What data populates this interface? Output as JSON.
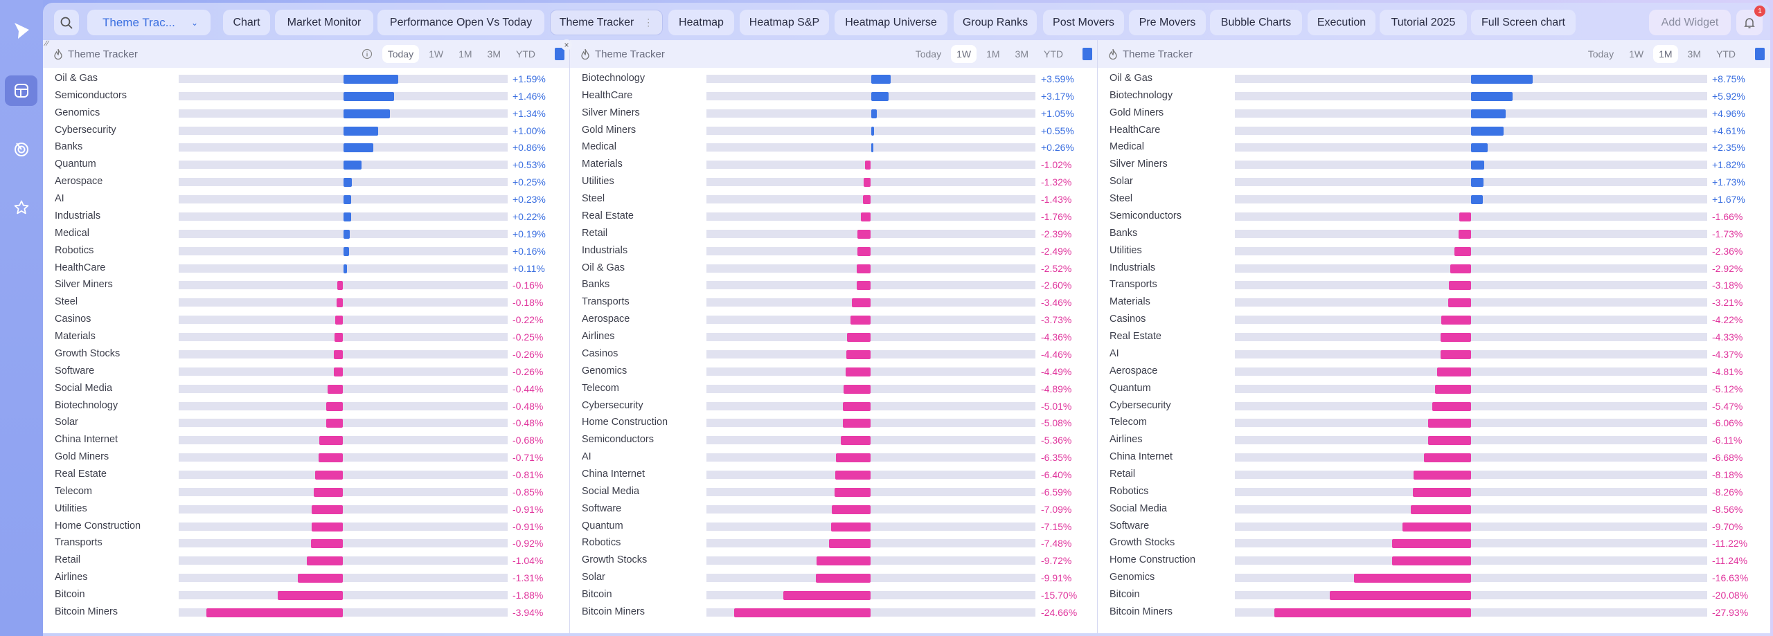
{
  "sidebar": {
    "items": [
      {
        "icon": "logo-icon"
      },
      {
        "icon": "dashboard-icon",
        "active": true
      },
      {
        "icon": "radar-icon"
      },
      {
        "icon": "star-icon"
      }
    ]
  },
  "topbar": {
    "search_icon": "search-icon",
    "dropdown_value": "Theme Trac...",
    "tabs": [
      "Chart",
      "Market Monitor",
      "Performance Open Vs Today",
      "Theme Tracker",
      "Heatmap",
      "Heatmap S&P",
      "Heatmap Universe",
      "Group Ranks",
      "Post Movers",
      "Pre Movers",
      "Bubble Charts",
      "Execution",
      "Tutorial 2025",
      "Full Screen chart"
    ],
    "active_tab": "Theme Tracker",
    "add_widget": "Add Widget",
    "notification_count": "1"
  },
  "colors": {
    "positive": "#3a73e5",
    "negative": "#e83aa8",
    "track": "#e1e2f0",
    "positive_text": "#3b6fe0",
    "negative_text": "#e0359d"
  },
  "panels": [
    {
      "title": "Theme Tracker",
      "periods": [
        "Today",
        "1W",
        "1M",
        "3M",
        "YTD"
      ],
      "active_period": "Today",
      "has_info": true,
      "rows": [
        {
          "label": "Oil & Gas",
          "value": "+1.59%"
        },
        {
          "label": "Semiconductors",
          "value": "+1.46%"
        },
        {
          "label": "Genomics",
          "value": "+1.34%"
        },
        {
          "label": "Cybersecurity",
          "value": "+1.00%"
        },
        {
          "label": "Banks",
          "value": "+0.86%"
        },
        {
          "label": "Quantum",
          "value": "+0.53%"
        },
        {
          "label": "Aerospace",
          "value": "+0.25%"
        },
        {
          "label": "AI",
          "value": "+0.23%"
        },
        {
          "label": "Industrials",
          "value": "+0.22%"
        },
        {
          "label": "Medical",
          "value": "+0.19%"
        },
        {
          "label": "Robotics",
          "value": "+0.16%"
        },
        {
          "label": "HealthCare",
          "value": "+0.11%"
        },
        {
          "label": "Silver Miners",
          "value": "-0.16%"
        },
        {
          "label": "Steel",
          "value": "-0.18%"
        },
        {
          "label": "Casinos",
          "value": "-0.22%"
        },
        {
          "label": "Materials",
          "value": "-0.25%"
        },
        {
          "label": "Growth Stocks",
          "value": "-0.26%"
        },
        {
          "label": "Software",
          "value": "-0.26%"
        },
        {
          "label": "Social Media",
          "value": "-0.44%"
        },
        {
          "label": "Biotechnology",
          "value": "-0.48%"
        },
        {
          "label": "Solar",
          "value": "-0.48%"
        },
        {
          "label": "China Internet",
          "value": "-0.68%"
        },
        {
          "label": "Gold Miners",
          "value": "-0.71%"
        },
        {
          "label": "Real Estate",
          "value": "-0.81%"
        },
        {
          "label": "Telecom",
          "value": "-0.85%"
        },
        {
          "label": "Utilities",
          "value": "-0.91%"
        },
        {
          "label": "Home Construction",
          "value": "-0.91%"
        },
        {
          "label": "Transports",
          "value": "-0.92%"
        },
        {
          "label": "Retail",
          "value": "-1.04%"
        },
        {
          "label": "Airlines",
          "value": "-1.31%"
        },
        {
          "label": "Bitcoin",
          "value": "-1.88%"
        },
        {
          "label": "Bitcoin Miners",
          "value": "-3.94%"
        }
      ]
    },
    {
      "title": "Theme Tracker",
      "periods": [
        "Today",
        "1W",
        "1M",
        "3M",
        "YTD"
      ],
      "active_period": "1W",
      "has_info": false,
      "rows": [
        {
          "label": "Biotechnology",
          "value": "+3.59%"
        },
        {
          "label": "HealthCare",
          "value": "+3.17%"
        },
        {
          "label": "Silver Miners",
          "value": "+1.05%"
        },
        {
          "label": "Gold Miners",
          "value": "+0.55%"
        },
        {
          "label": "Medical",
          "value": "+0.26%"
        },
        {
          "label": "Materials",
          "value": "-1.02%"
        },
        {
          "label": "Utilities",
          "value": "-1.32%"
        },
        {
          "label": "Steel",
          "value": "-1.43%"
        },
        {
          "label": "Real Estate",
          "value": "-1.76%"
        },
        {
          "label": "Retail",
          "value": "-2.39%"
        },
        {
          "label": "Industrials",
          "value": "-2.49%"
        },
        {
          "label": "Oil & Gas",
          "value": "-2.52%"
        },
        {
          "label": "Banks",
          "value": "-2.60%"
        },
        {
          "label": "Transports",
          "value": "-3.46%"
        },
        {
          "label": "Aerospace",
          "value": "-3.73%"
        },
        {
          "label": "Airlines",
          "value": "-4.36%"
        },
        {
          "label": "Casinos",
          "value": "-4.46%"
        },
        {
          "label": "Genomics",
          "value": "-4.49%"
        },
        {
          "label": "Telecom",
          "value": "-4.89%"
        },
        {
          "label": "Cybersecurity",
          "value": "-5.01%"
        },
        {
          "label": "Home Construction",
          "value": "-5.08%"
        },
        {
          "label": "Semiconductors",
          "value": "-5.36%"
        },
        {
          "label": "AI",
          "value": "-6.35%"
        },
        {
          "label": "China Internet",
          "value": "-6.40%"
        },
        {
          "label": "Social Media",
          "value": "-6.59%"
        },
        {
          "label": "Software",
          "value": "-7.09%"
        },
        {
          "label": "Quantum",
          "value": "-7.15%"
        },
        {
          "label": "Robotics",
          "value": "-7.48%"
        },
        {
          "label": "Growth Stocks",
          "value": "-9.72%"
        },
        {
          "label": "Solar",
          "value": "-9.91%"
        },
        {
          "label": "Bitcoin",
          "value": "-15.70%"
        },
        {
          "label": "Bitcoin Miners",
          "value": "-24.66%"
        }
      ]
    },
    {
      "title": "Theme Tracker",
      "periods": [
        "Today",
        "1W",
        "1M",
        "3M",
        "YTD"
      ],
      "active_period": "1M",
      "has_info": false,
      "rows": [
        {
          "label": "Oil & Gas",
          "value": "+8.75%"
        },
        {
          "label": "Biotechnology",
          "value": "+5.92%"
        },
        {
          "label": "Gold Miners",
          "value": "+4.96%"
        },
        {
          "label": "HealthCare",
          "value": "+4.61%"
        },
        {
          "label": "Medical",
          "value": "+2.35%"
        },
        {
          "label": "Silver Miners",
          "value": "+1.82%"
        },
        {
          "label": "Solar",
          "value": "+1.73%"
        },
        {
          "label": "Steel",
          "value": "+1.67%"
        },
        {
          "label": "Semiconductors",
          "value": "-1.66%"
        },
        {
          "label": "Banks",
          "value": "-1.73%"
        },
        {
          "label": "Utilities",
          "value": "-2.36%"
        },
        {
          "label": "Industrials",
          "value": "-2.92%"
        },
        {
          "label": "Transports",
          "value": "-3.18%"
        },
        {
          "label": "Materials",
          "value": "-3.21%"
        },
        {
          "label": "Casinos",
          "value": "-4.22%"
        },
        {
          "label": "Real Estate",
          "value": "-4.33%"
        },
        {
          "label": "AI",
          "value": "-4.37%"
        },
        {
          "label": "Aerospace",
          "value": "-4.81%"
        },
        {
          "label": "Quantum",
          "value": "-5.12%"
        },
        {
          "label": "Cybersecurity",
          "value": "-5.47%"
        },
        {
          "label": "Telecom",
          "value": "-6.06%"
        },
        {
          "label": "Airlines",
          "value": "-6.11%"
        },
        {
          "label": "China Internet",
          "value": "-6.68%"
        },
        {
          "label": "Retail",
          "value": "-8.18%"
        },
        {
          "label": "Robotics",
          "value": "-8.26%"
        },
        {
          "label": "Social Media",
          "value": "-8.56%"
        },
        {
          "label": "Software",
          "value": "-9.70%"
        },
        {
          "label": "Growth Stocks",
          "value": "-11.22%"
        },
        {
          "label": "Home Construction",
          "value": "-11.24%"
        },
        {
          "label": "Genomics",
          "value": "-16.63%"
        },
        {
          "label": "Bitcoin",
          "value": "-20.08%"
        },
        {
          "label": "Bitcoin Miners",
          "value": "-27.93%"
        }
      ]
    }
  ]
}
